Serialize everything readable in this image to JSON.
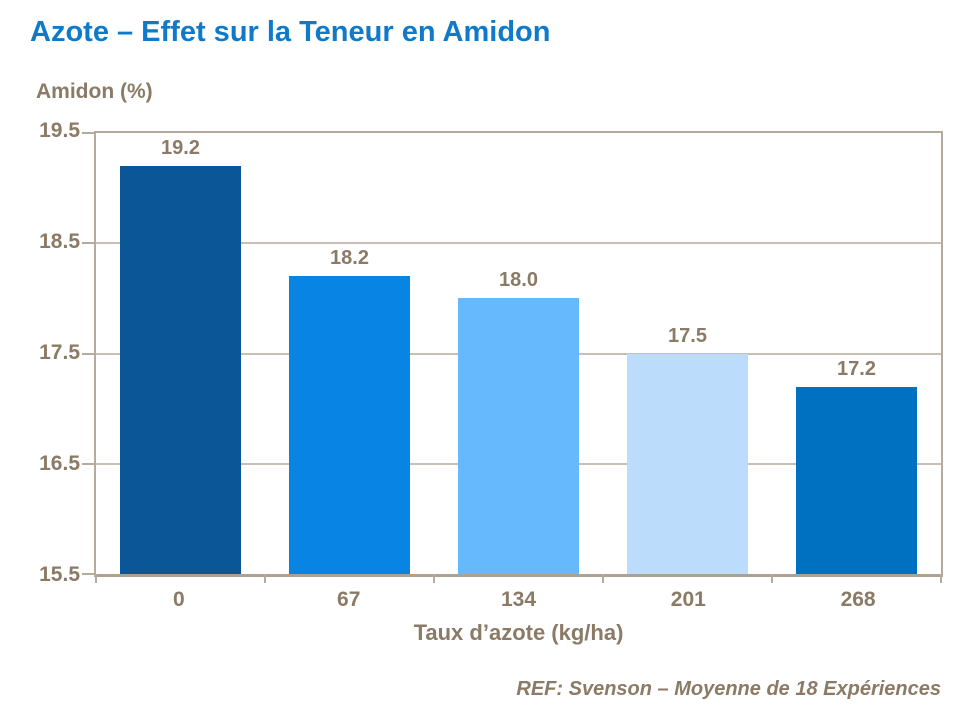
{
  "page": {
    "title": "Azote – Effet sur la Teneur en Amidon",
    "footer": "REF: Svenson – Moyenne de 18 Expériences"
  },
  "chart_data": {
    "type": "bar",
    "title": "Azote – Effet sur la Teneur en Amidon",
    "ylabel": "Amidon (%)",
    "xlabel": "Taux d’azote (kg/ha)",
    "categories": [
      "0",
      "67",
      "134",
      "201",
      "268"
    ],
    "values": [
      19.2,
      18.2,
      18.0,
      17.5,
      17.2
    ],
    "value_labels": [
      "19.2",
      "18.2",
      "18.0",
      "17.5",
      "17.2"
    ],
    "bar_colors": [
      "#0B5697",
      "#0884E4",
      "#66B9FC",
      "#BBDCFB",
      "#0070C0"
    ],
    "ylim": [
      15.5,
      19.5
    ],
    "y_ticks": [
      19.5,
      18.5,
      17.5,
      16.5,
      15.5
    ],
    "grid": "horizontal gridlines at interior y ticks",
    "legend": "none",
    "source": "REF: Svenson – Moyenne de 18 Expériences"
  },
  "colors": {
    "title_text": "#0F7AC9",
    "axis_text": "#8A7A66",
    "gridline": "#C9C0B4",
    "plot_border": "#B5AB9D"
  }
}
